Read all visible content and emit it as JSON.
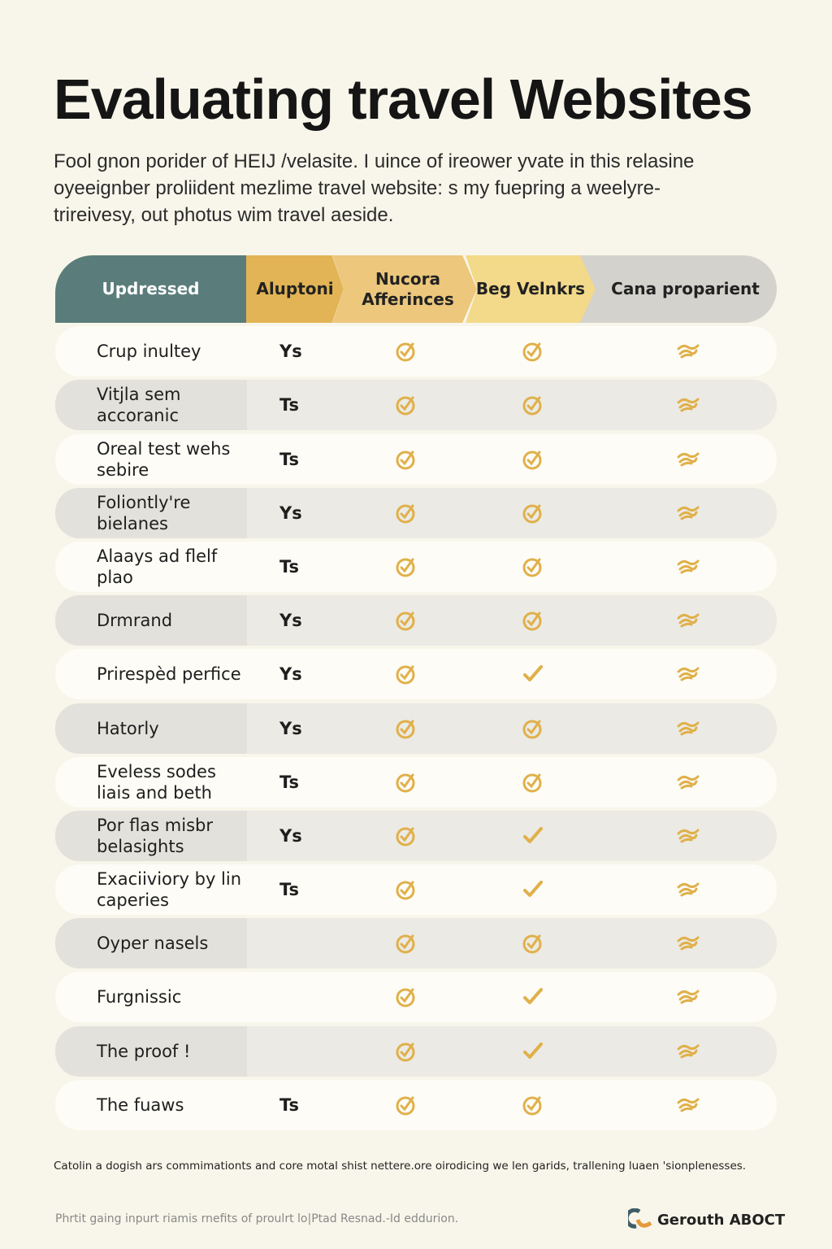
{
  "title": "Evaluating travel Websites",
  "intro": "Fool gnon porider of HEIJ /velasite. I uince of ireower yvate in this relasine oyeeignber proliident mezlime travel website: s my fuepring a weelyre-trireivesy, out photus wim travel aeside.",
  "columns": [
    "Updressed",
    "Aluptoni",
    "Nucora Afferinces",
    "Beg Velnkrs",
    "Cana proparient"
  ],
  "colors": {
    "teal": "#5a7d7b",
    "gold": "#e2b455",
    "icon": "#e0b04a"
  },
  "rows": [
    {
      "label": "Crup inultey",
      "c2": "Ys",
      "c4": "check-circle"
    },
    {
      "label": "Vitjla sem accoranic",
      "c2": "Ts",
      "c4": "check-circle"
    },
    {
      "label": "Oreal test wehs sebire",
      "c2": "Ts",
      "c4": "check-circle"
    },
    {
      "label": "Foliontly're bielanes",
      "c2": "Ys",
      "c4": "check-circle"
    },
    {
      "label": "Alaays ad flelf plao",
      "c2": "Ts",
      "c4": "check-circle"
    },
    {
      "label": "Drmrand",
      "c2": "Ys",
      "c4": "check-circle"
    },
    {
      "label": "Prirespèd perfice",
      "c2": "Ys",
      "c4": "check"
    },
    {
      "label": "Hatorly",
      "c2": "Ys",
      "c4": "check-circle"
    },
    {
      "label": "Eveless sodes liais and beth",
      "c2": "Ts",
      "c4": "check-circle"
    },
    {
      "label": "Por flas misbr belasights",
      "c2": "Ys",
      "c4": "check"
    },
    {
      "label": "Exaciiviory by lin caperies",
      "c2": "Ts",
      "c4": "check"
    },
    {
      "label": "Oyper nasels",
      "c2": "",
      "c4": "check-circle"
    },
    {
      "label": "Furgnissic",
      "c2": "",
      "c4": "check"
    },
    {
      "label": "The proof !",
      "c2": "",
      "c4": "check"
    },
    {
      "label": "The fuaws",
      "c2": "Ts",
      "c4": "check-circle"
    }
  ],
  "note": "Catolin a dogish ars commimationts and core motal shist nettere.ore oirodicing we len garids, trallening luaen 'sionplenesses.",
  "footer": "Phrtit gaing inpurt riamis rnefits of proulrt lo|Ptad Resnad.-Id eddurion.",
  "brand": "Gerouth ABOCT"
}
